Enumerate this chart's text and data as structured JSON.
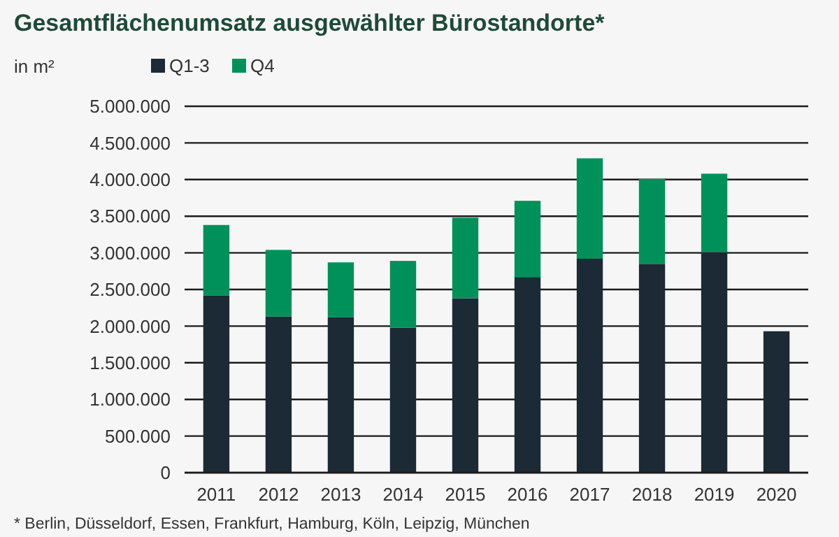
{
  "chart_data": {
    "type": "bar",
    "title": "Gesamtflächenumsatz ausgewählter Bürostandorte*",
    "ylabel": "in m²",
    "categories": [
      "2011",
      "2012",
      "2013",
      "2014",
      "2015",
      "2016",
      "2017",
      "2018",
      "2019",
      "2020"
    ],
    "stacked": true,
    "series": [
      {
        "name": "Q1-3",
        "color": "#1b2a35",
        "values": [
          2420000,
          2130000,
          2120000,
          1980000,
          2380000,
          2670000,
          2920000,
          2850000,
          3010000,
          1930000
        ]
      },
      {
        "name": "Q4",
        "color": "#00915a",
        "values": [
          960000,
          910000,
          750000,
          910000,
          1100000,
          1040000,
          1370000,
          1160000,
          1070000,
          null
        ]
      }
    ],
    "ylim": [
      0,
      5000000
    ],
    "yticks": [
      0,
      {
        "value": 500000,
        "label": "500.000"
      },
      {
        "value": 1000000,
        "label": "1.000.000"
      },
      {
        "value": 1500000,
        "label": "1.500.000"
      },
      {
        "value": 2000000,
        "label": "2.000.000"
      },
      {
        "value": 2500000,
        "label": "2.500.000"
      },
      {
        "value": 3000000,
        "label": "3.000.000"
      },
      {
        "value": 3500000,
        "label": "3.500.000"
      },
      {
        "value": 4000000,
        "label": "4.000.000"
      },
      {
        "value": 4500000,
        "label": "4.500.000"
      },
      {
        "value": 5000000,
        "label": "5.000.000"
      }
    ],
    "grid": "y",
    "legend": "top left",
    "annotations": [
      "* Berlin, Düsseldorf, Essen, Frankfurt, Hamburg, Köln, Leipzig, München"
    ]
  }
}
